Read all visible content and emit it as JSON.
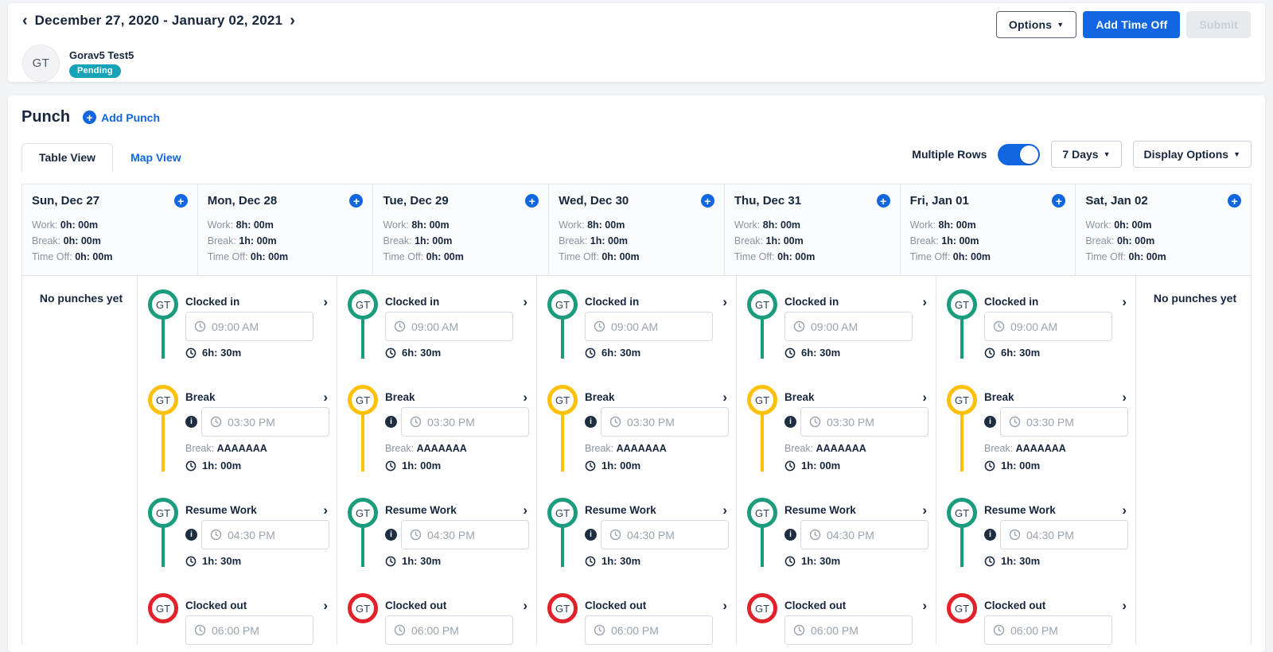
{
  "header": {
    "prev_icon": "‹",
    "next_icon": "›",
    "date_range": "December 27, 2020 - January 02, 2021",
    "user": {
      "initials": "GT",
      "name": "Gorav5 Test5",
      "status": "Pending"
    },
    "options_label": "Options",
    "add_time_off_label": "Add Time Off",
    "submit_label": "Submit"
  },
  "punch_section": {
    "title": "Punch",
    "add_punch_label": "Add Punch",
    "tabs": [
      {
        "label": "Table View",
        "active": true
      },
      {
        "label": "Map View",
        "active": false
      }
    ],
    "multiple_rows_label": "Multiple Rows",
    "multiple_rows_on": true,
    "days_dropdown_label": "7 Days",
    "display_options_label": "Display Options"
  },
  "colors": {
    "accent_blue": "#1266e0",
    "badge_teal": "#17a2b8",
    "green": "#1a9c7d",
    "yellow": "#ffc108",
    "red": "#e2222a",
    "navy_text": "#16263d"
  },
  "week": {
    "stat_labels": {
      "work": "Work:",
      "break": "Break:",
      "time_off": "Time Off:"
    },
    "no_punches_text": "No punches yet",
    "entry_chevron_icon": "›",
    "days": [
      {
        "label": "Sun, Dec 27",
        "stats": {
          "work": "0h: 00m",
          "break": "0h: 00m",
          "time_off": "0h: 00m"
        },
        "punches": []
      },
      {
        "label": "Mon, Dec 28",
        "stats": {
          "work": "8h: 00m",
          "break": "1h: 00m",
          "time_off": "0h: 00m"
        },
        "punches": [
          {
            "initials": "GT",
            "type": "Clocked in",
            "time": "09:00 AM",
            "duration": "6h: 30m",
            "color": "green",
            "has_info": false
          },
          {
            "initials": "GT",
            "type": "Break",
            "time": "03:30 PM",
            "duration": "1h: 00m",
            "color": "yellow",
            "has_info": true,
            "note_label": "Break:",
            "note_value": "AAAAAAA"
          },
          {
            "initials": "GT",
            "type": "Resume Work",
            "time": "04:30 PM",
            "duration": "1h: 30m",
            "color": "green",
            "has_info": true
          },
          {
            "initials": "GT",
            "type": "Clocked out",
            "time": "06:00 PM",
            "color": "red",
            "has_info": false
          }
        ]
      },
      {
        "label": "Tue, Dec 29",
        "stats": {
          "work": "8h: 00m",
          "break": "1h: 00m",
          "time_off": "0h: 00m"
        },
        "punches": [
          {
            "initials": "GT",
            "type": "Clocked in",
            "time": "09:00 AM",
            "duration": "6h: 30m",
            "color": "green",
            "has_info": false
          },
          {
            "initials": "GT",
            "type": "Break",
            "time": "03:30 PM",
            "duration": "1h: 00m",
            "color": "yellow",
            "has_info": true,
            "note_label": "Break:",
            "note_value": "AAAAAAA"
          },
          {
            "initials": "GT",
            "type": "Resume Work",
            "time": "04:30 PM",
            "duration": "1h: 30m",
            "color": "green",
            "has_info": true
          },
          {
            "initials": "GT",
            "type": "Clocked out",
            "time": "06:00 PM",
            "color": "red",
            "has_info": false
          }
        ]
      },
      {
        "label": "Wed, Dec 30",
        "stats": {
          "work": "8h: 00m",
          "break": "1h: 00m",
          "time_off": "0h: 00m"
        },
        "punches": [
          {
            "initials": "GT",
            "type": "Clocked in",
            "time": "09:00 AM",
            "duration": "6h: 30m",
            "color": "green",
            "has_info": false
          },
          {
            "initials": "GT",
            "type": "Break",
            "time": "03:30 PM",
            "duration": "1h: 00m",
            "color": "yellow",
            "has_info": true,
            "note_label": "Break:",
            "note_value": "AAAAAAA"
          },
          {
            "initials": "GT",
            "type": "Resume Work",
            "time": "04:30 PM",
            "duration": "1h: 30m",
            "color": "green",
            "has_info": true
          },
          {
            "initials": "GT",
            "type": "Clocked out",
            "time": "06:00 PM",
            "color": "red",
            "has_info": false
          }
        ]
      },
      {
        "label": "Thu, Dec 31",
        "stats": {
          "work": "8h: 00m",
          "break": "1h: 00m",
          "time_off": "0h: 00m"
        },
        "punches": [
          {
            "initials": "GT",
            "type": "Clocked in",
            "time": "09:00 AM",
            "duration": "6h: 30m",
            "color": "green",
            "has_info": false
          },
          {
            "initials": "GT",
            "type": "Break",
            "time": "03:30 PM",
            "duration": "1h: 00m",
            "color": "yellow",
            "has_info": true,
            "note_label": "Break:",
            "note_value": "AAAAAAA"
          },
          {
            "initials": "GT",
            "type": "Resume Work",
            "time": "04:30 PM",
            "duration": "1h: 30m",
            "color": "green",
            "has_info": true
          },
          {
            "initials": "GT",
            "type": "Clocked out",
            "time": "06:00 PM",
            "color": "red",
            "has_info": false
          }
        ]
      },
      {
        "label": "Fri, Jan 01",
        "stats": {
          "work": "8h: 00m",
          "break": "1h: 00m",
          "time_off": "0h: 00m"
        },
        "punches": [
          {
            "initials": "GT",
            "type": "Clocked in",
            "time": "09:00 AM",
            "duration": "6h: 30m",
            "color": "green",
            "has_info": false
          },
          {
            "initials": "GT",
            "type": "Break",
            "time": "03:30 PM",
            "duration": "1h: 00m",
            "color": "yellow",
            "has_info": true,
            "note_label": "Break:",
            "note_value": "AAAAAAA"
          },
          {
            "initials": "GT",
            "type": "Resume Work",
            "time": "04:30 PM",
            "duration": "1h: 30m",
            "color": "green",
            "has_info": true
          },
          {
            "initials": "GT",
            "type": "Clocked out",
            "time": "06:00 PM",
            "color": "red",
            "has_info": false
          }
        ]
      },
      {
        "label": "Sat, Jan 02",
        "stats": {
          "work": "0h: 00m",
          "break": "0h: 00m",
          "time_off": "0h: 00m"
        },
        "punches": []
      }
    ]
  }
}
